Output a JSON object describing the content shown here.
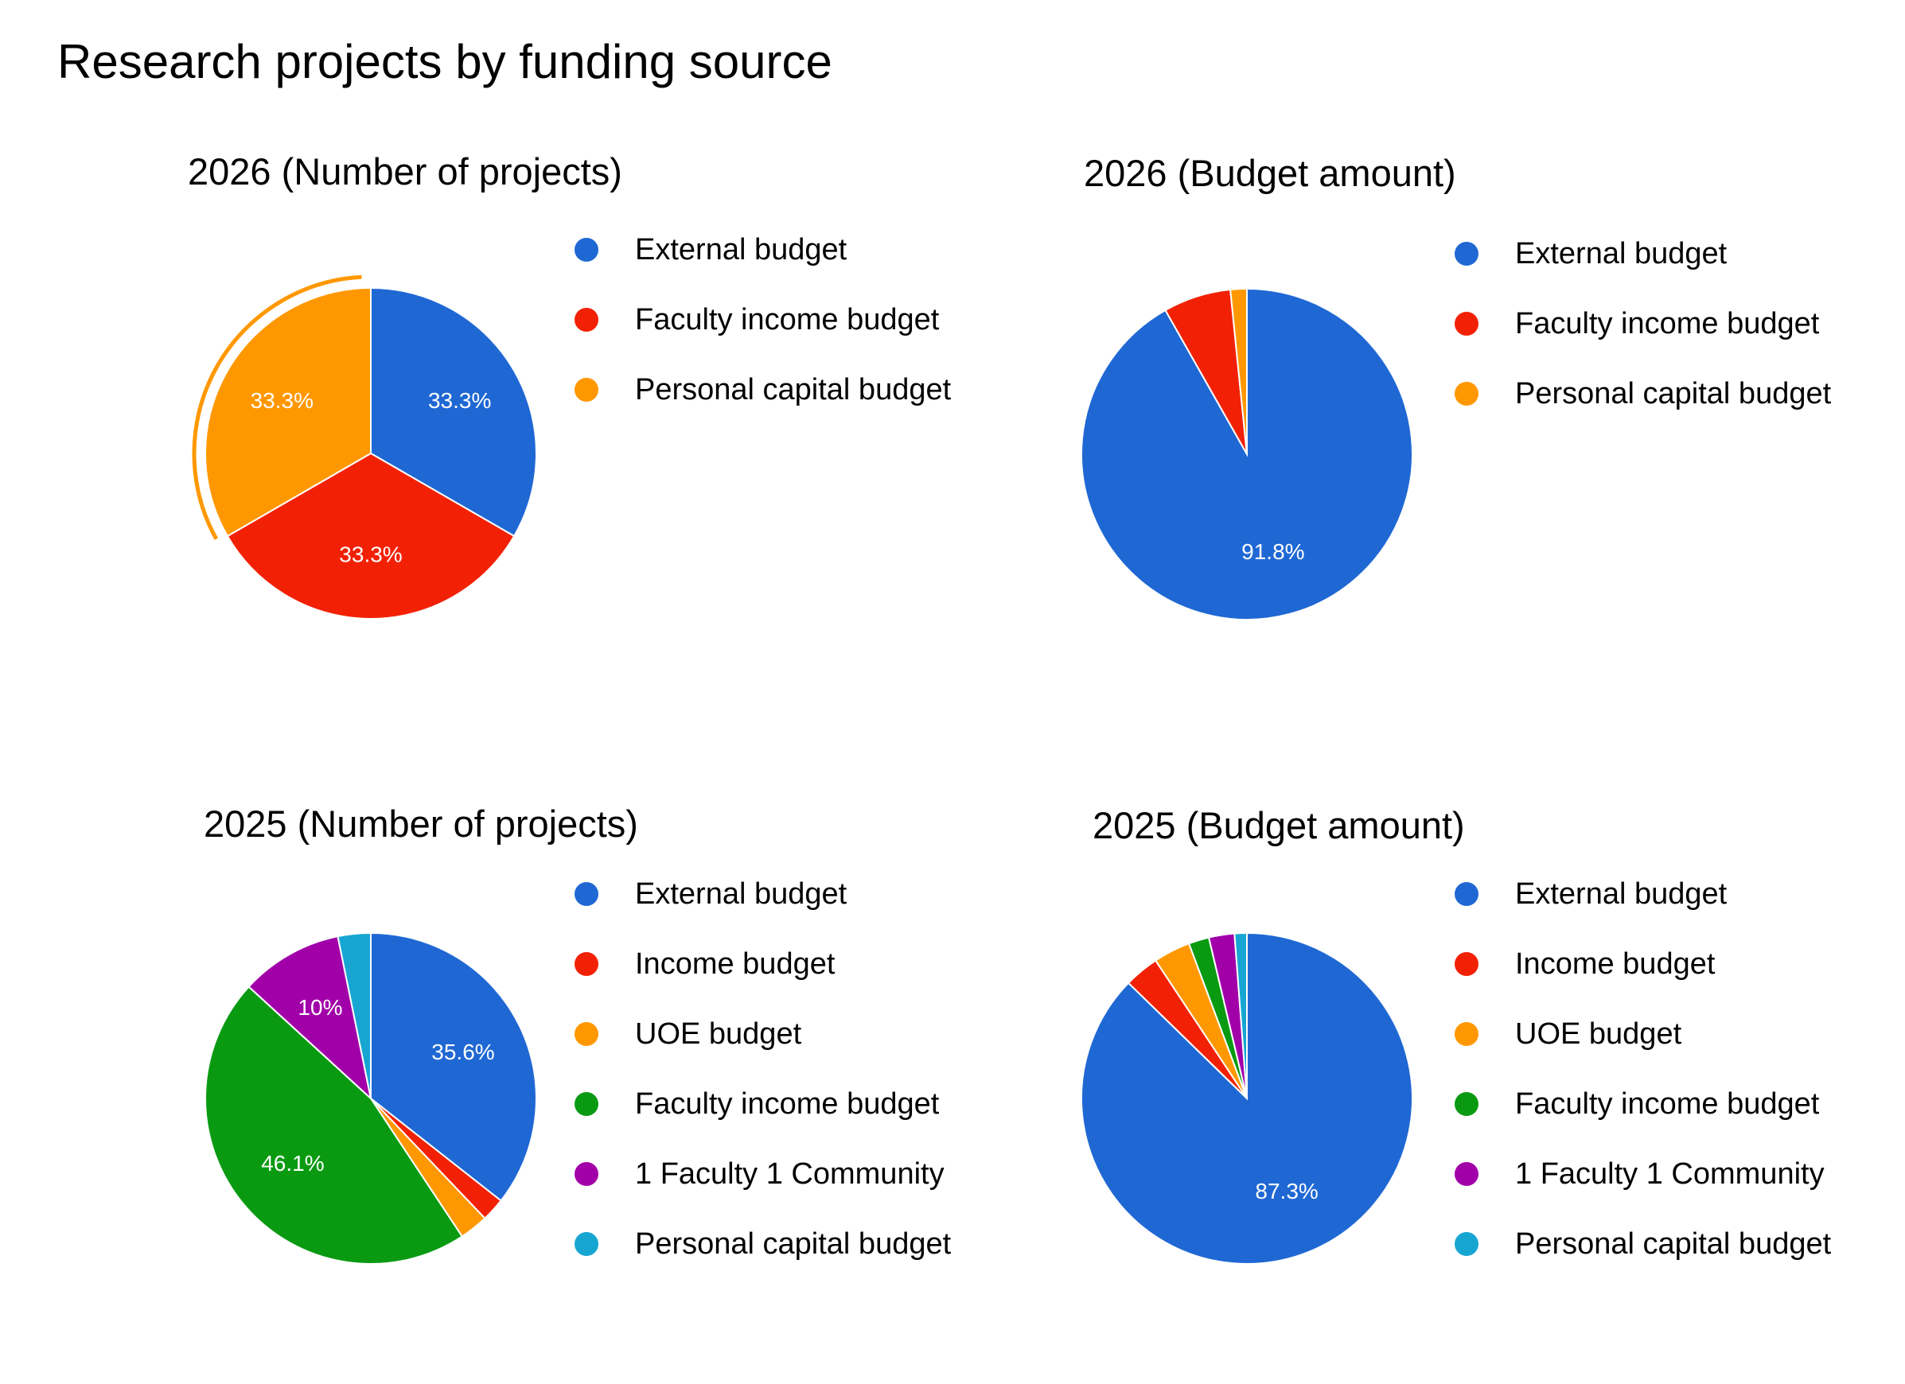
{
  "page": {
    "title": "Research projects by funding source"
  },
  "colors": {
    "blue": "#1f68d4",
    "red": "#f22106",
    "orange": "#ff9800",
    "green": "#0a9a12",
    "purple": "#a100a9",
    "cyan": "#17a6d2",
    "highlight_ring": "#ff9800",
    "slice_label": "#ffffff"
  },
  "chart_data": [
    {
      "id": "p2026",
      "type": "pie",
      "title": "2026 (Number of projects)",
      "categories": [
        "External budget",
        "Faculty income budget",
        "Personal capital budget"
      ],
      "values": [
        33.3,
        33.3,
        33.3
      ],
      "colors": [
        "#1f68d4",
        "#f22106",
        "#ff9800"
      ],
      "labels": [
        "33.3%",
        "33.3%",
        "33.3%"
      ],
      "highlighted_slice": "Personal capital budget",
      "legend": [
        "External budget",
        "Faculty income budget",
        "Personal capital budget"
      ]
    },
    {
      "id": "b2026",
      "type": "pie",
      "title": "2026 (Budget amount)",
      "categories": [
        "External budget",
        "Faculty income budget",
        "Personal capital budget"
      ],
      "values": [
        91.8,
        6.6,
        1.6
      ],
      "colors": [
        "#1f68d4",
        "#f22106",
        "#ff9800"
      ],
      "labels": [
        "91.8%",
        "",
        ""
      ],
      "legend": [
        "External budget",
        "Faculty income budget",
        "Personal capital budget"
      ]
    },
    {
      "id": "p2025",
      "type": "pie",
      "title": "2025 (Number of projects)",
      "categories": [
        "External budget",
        "Income budget",
        "UOE budget",
        "Faculty income budget",
        "1 Faculty 1 Community",
        "Personal capital budget"
      ],
      "values": [
        35.6,
        2.3,
        2.8,
        46.1,
        10,
        3.2
      ],
      "colors": [
        "#1f68d4",
        "#f22106",
        "#ff9800",
        "#0a9a12",
        "#a100a9",
        "#17a6d2"
      ],
      "labels": [
        "35.6%",
        "",
        "",
        "46.1%",
        "10%",
        ""
      ],
      "legend": [
        "External budget",
        "Income budget",
        "UOE budget",
        "Faculty income budget",
        "1 Faculty 1 Community",
        "Personal capital budget"
      ]
    },
    {
      "id": "b2025",
      "type": "pie",
      "title": "2025 (Budget amount)",
      "categories": [
        "External budget",
        "Income budget",
        "UOE budget",
        "Faculty income budget",
        "1 Faculty 1 Community",
        "Personal capital budget"
      ],
      "values": [
        87.3,
        3.4,
        3.6,
        2.0,
        2.5,
        1.2
      ],
      "colors": [
        "#1f68d4",
        "#f22106",
        "#ff9800",
        "#0a9a12",
        "#a100a9",
        "#17a6d2"
      ],
      "labels": [
        "87.3%",
        "",
        "",
        "",
        "",
        ""
      ],
      "legend": [
        "External budget",
        "Income budget",
        "UOE budget",
        "Faculty income budget",
        "1 Faculty 1 Community",
        "Personal capital budget"
      ]
    }
  ]
}
